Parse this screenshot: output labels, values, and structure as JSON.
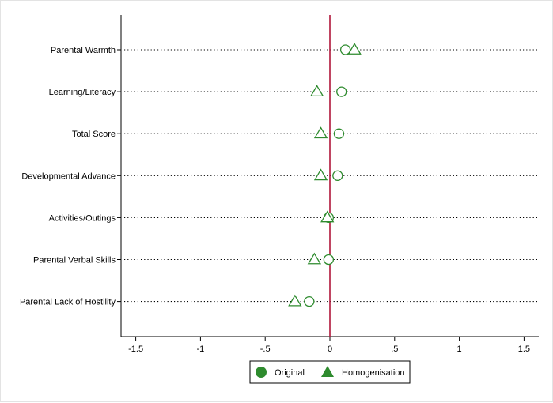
{
  "chart_data": {
    "type": "scatter",
    "orientation": "horizontal-dot-plot",
    "categories": [
      "Parental Warmth",
      "Learning/Literacy",
      "Total Score",
      "Developmental Advance",
      "Activities/Outings",
      "Parental Verbal Skills",
      "Parental Lack of Hostility"
    ],
    "series": [
      {
        "name": "Original",
        "marker": "circle",
        "values": [
          0.12,
          0.09,
          0.07,
          0.06,
          -0.01,
          -0.01,
          -0.16
        ]
      },
      {
        "name": "Homogenisation",
        "marker": "triangle",
        "values": [
          0.19,
          -0.1,
          -0.07,
          -0.07,
          -0.02,
          -0.12,
          -0.27
        ]
      }
    ],
    "x_ticks": [
      -1.5,
      -1,
      -0.5,
      0,
      0.5,
      1,
      1.5
    ],
    "x_tick_labels": [
      "-1.5",
      "-1",
      "-.5",
      "0",
      ".5",
      "1",
      "1.5"
    ],
    "xlim": [
      -1.6,
      1.6
    ],
    "reference_line": {
      "x": 0,
      "color": "#b0163a"
    },
    "marker_color": "#2e8b2e",
    "grid": "dotted horizontal guide lines per category",
    "legend_placement": "bottom-center",
    "title": "",
    "xlabel": "",
    "ylabel": ""
  }
}
